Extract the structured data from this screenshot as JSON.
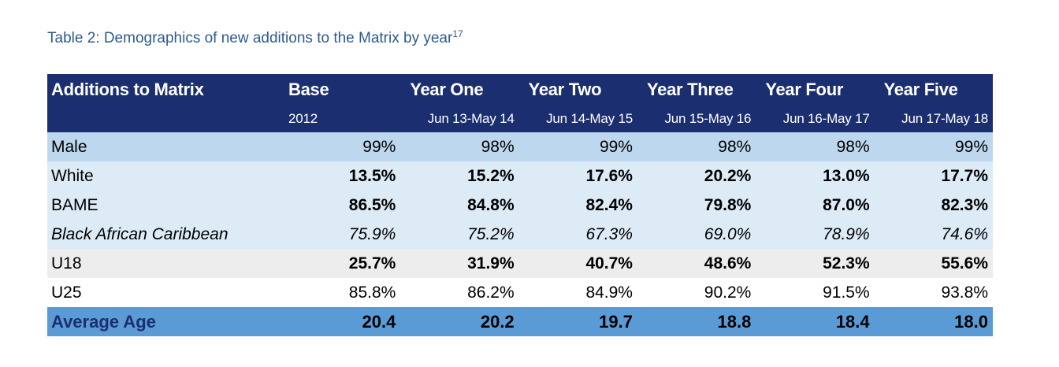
{
  "caption": {
    "text": "Table 2: Demographics of new additions to the Matrix by year",
    "footnote": "17"
  },
  "header": {
    "titles": [
      "Additions to Matrix",
      "Base",
      "Year One",
      "Year Two",
      "Year Three",
      "Year Four",
      "Year Five"
    ],
    "periods": [
      "",
      "2012",
      "Jun 13-May 14",
      "Jun 14-May 15",
      "Jun 15-May 16",
      "Jun 16-May 17",
      "Jun 17-May 18"
    ]
  },
  "rows": [
    {
      "label": "Male",
      "values": [
        "99%",
        "98%",
        "99%",
        "98%",
        "98%",
        "99%"
      ]
    },
    {
      "label": "White",
      "values": [
        "13.5%",
        "15.2%",
        "17.6%",
        "20.2%",
        "13.0%",
        "17.7%"
      ]
    },
    {
      "label": "BAME",
      "values": [
        "86.5%",
        "84.8%",
        "82.4%",
        "79.8%",
        "87.0%",
        "82.3%"
      ]
    },
    {
      "label": "Black African Caribbean",
      "values": [
        "75.9%",
        "75.2%",
        "67.3%",
        "69.0%",
        "78.9%",
        "74.6%"
      ]
    },
    {
      "label": "U18",
      "values": [
        "25.7%",
        "31.9%",
        "40.7%",
        "48.6%",
        "52.3%",
        "55.6%"
      ]
    },
    {
      "label": "U25",
      "values": [
        "85.8%",
        "86.2%",
        "84.9%",
        "90.2%",
        "91.5%",
        "93.8%"
      ]
    },
    {
      "label": "Average Age",
      "values": [
        "20.4",
        "20.2",
        "19.7",
        "18.8",
        "18.4",
        "18.0"
      ]
    }
  ],
  "colors": {
    "caption": "#2e5b8e",
    "header_bg": "#1b2f70",
    "male_bg": "#bdd7ee",
    "light_bg": "#ddebf7",
    "grey_bg": "#ededed",
    "average_bg": "#5b9bd5"
  }
}
